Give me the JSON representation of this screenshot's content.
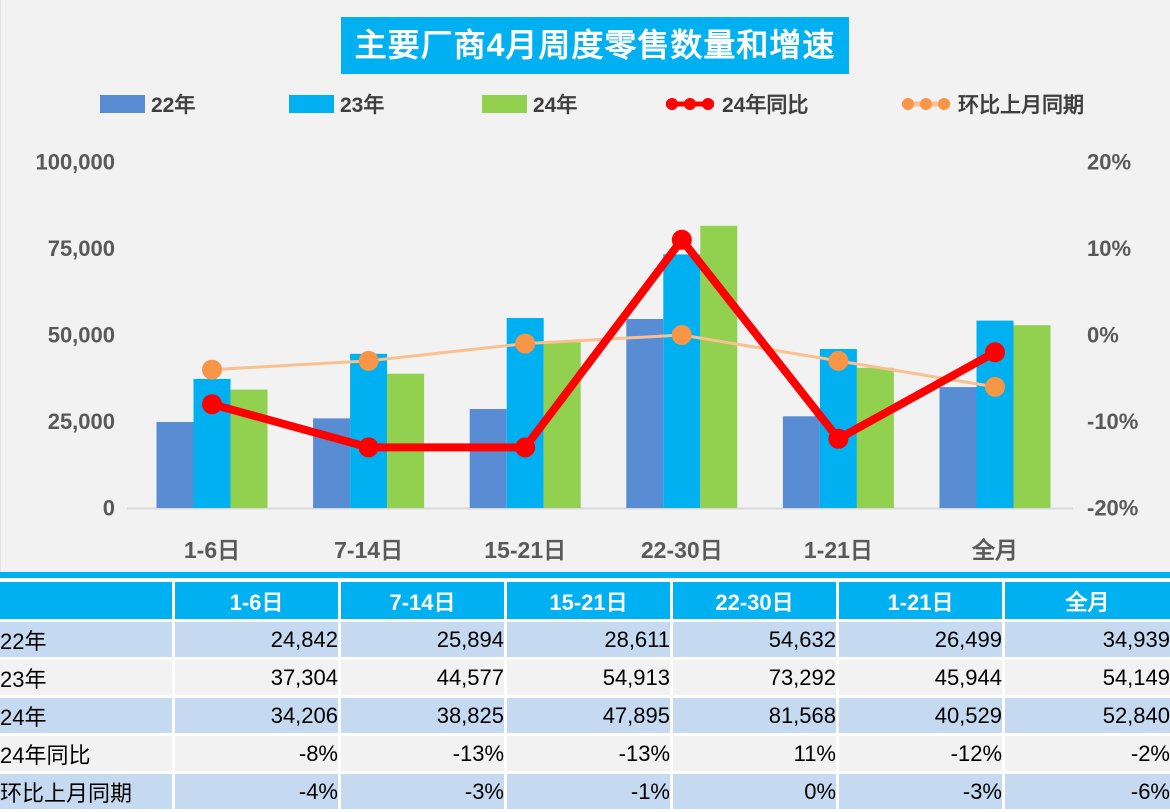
{
  "title": "主要厂商4月周度零售数量和增速",
  "legend": [
    {
      "label": "22年",
      "type": "bar",
      "color": "#588cd3"
    },
    {
      "label": "23年",
      "type": "bar",
      "color": "#00b0f0"
    },
    {
      "label": "24年",
      "type": "bar",
      "color": "#92d050"
    },
    {
      "label": "24年同比",
      "type": "line",
      "line_color": "#ff0000",
      "marker_color": "#ff0000"
    },
    {
      "label": "环比上月同期",
      "type": "line",
      "line_color": "#fac08f",
      "marker_color": "#f79646"
    }
  ],
  "chart_data": {
    "type": "bar",
    "subtype": "grouped-bars-with-lines",
    "title": "主要厂商4月周度零售数量和增速",
    "categories": [
      "1-6日",
      "7-14日",
      "15-21日",
      "22-30日",
      "1-21日",
      "全月"
    ],
    "series": [
      {
        "name": "22年",
        "kind": "bar",
        "axis": "left",
        "color": "#588cd3",
        "values": [
          24842,
          25894,
          28611,
          54632,
          26499,
          34939
        ]
      },
      {
        "name": "23年",
        "kind": "bar",
        "axis": "left",
        "color": "#00b0f0",
        "values": [
          37304,
          44577,
          54913,
          73292,
          45944,
          54149
        ]
      },
      {
        "name": "24年",
        "kind": "bar",
        "axis": "left",
        "color": "#92d050",
        "values": [
          34206,
          38825,
          47895,
          81568,
          40529,
          52840
        ]
      },
      {
        "name": "24年同比",
        "kind": "line",
        "axis": "right",
        "line_color": "#ff0000",
        "marker_color": "#ff0000",
        "line_width": 8,
        "values": [
          -8,
          -13,
          -13,
          11,
          -12,
          -2
        ]
      },
      {
        "name": "环比上月同期",
        "kind": "line",
        "axis": "right",
        "line_color": "#fac08f",
        "marker_color": "#f79646",
        "line_width": 3,
        "values": [
          -4,
          -3,
          -1,
          0,
          -3,
          -6
        ]
      }
    ],
    "left_axis": {
      "min": 0,
      "max": 100000,
      "tick_values": [
        100000,
        75000,
        50000,
        25000,
        0
      ],
      "tick_labels": [
        "100,000",
        "75,000",
        "50,000",
        "25,000",
        "0"
      ]
    },
    "right_axis": {
      "min": -20,
      "max": 20,
      "tick_values": [
        20,
        10,
        0,
        -10,
        -20
      ],
      "tick_labels": [
        "20%",
        "10%",
        "0%",
        "-10%",
        "-20%"
      ]
    },
    "grid": false,
    "legend_position": "top",
    "background": "#f2f2f2"
  },
  "table": {
    "header": [
      "",
      "1-6日",
      "7-14日",
      "15-21日",
      "22-30日",
      "1-21日",
      "全月"
    ],
    "rows": [
      {
        "label": "22年",
        "values": [
          "24,842",
          "25,894",
          "28,611",
          "54,632",
          "26,499",
          "34,939"
        ]
      },
      {
        "label": "23年",
        "values": [
          "37,304",
          "44,577",
          "54,913",
          "73,292",
          "45,944",
          "54,149"
        ]
      },
      {
        "label": "24年",
        "values": [
          "34,206",
          "38,825",
          "47,895",
          "81,568",
          "40,529",
          "52,840"
        ]
      },
      {
        "label": "24年同比",
        "values": [
          "-8%",
          "-13%",
          "-13%",
          "11%",
          "-12%",
          "-2%"
        ]
      },
      {
        "label": "环比上月同期",
        "values": [
          "-4%",
          "-3%",
          "-1%",
          "0%",
          "-3%",
          "-6%"
        ]
      }
    ]
  },
  "colors": {
    "accent_cyan": "#00b0f0",
    "bar_blue": "#588cd3",
    "bar_green": "#92d050",
    "line_red": "#ff0000",
    "line_orange": "#fac08f",
    "marker_orange": "#f79646",
    "table_row_blue": "#c5d9f1",
    "table_row_gray": "#f2f2f2",
    "chart_bg": "#f2f2f2",
    "axis_text": "#595959"
  }
}
